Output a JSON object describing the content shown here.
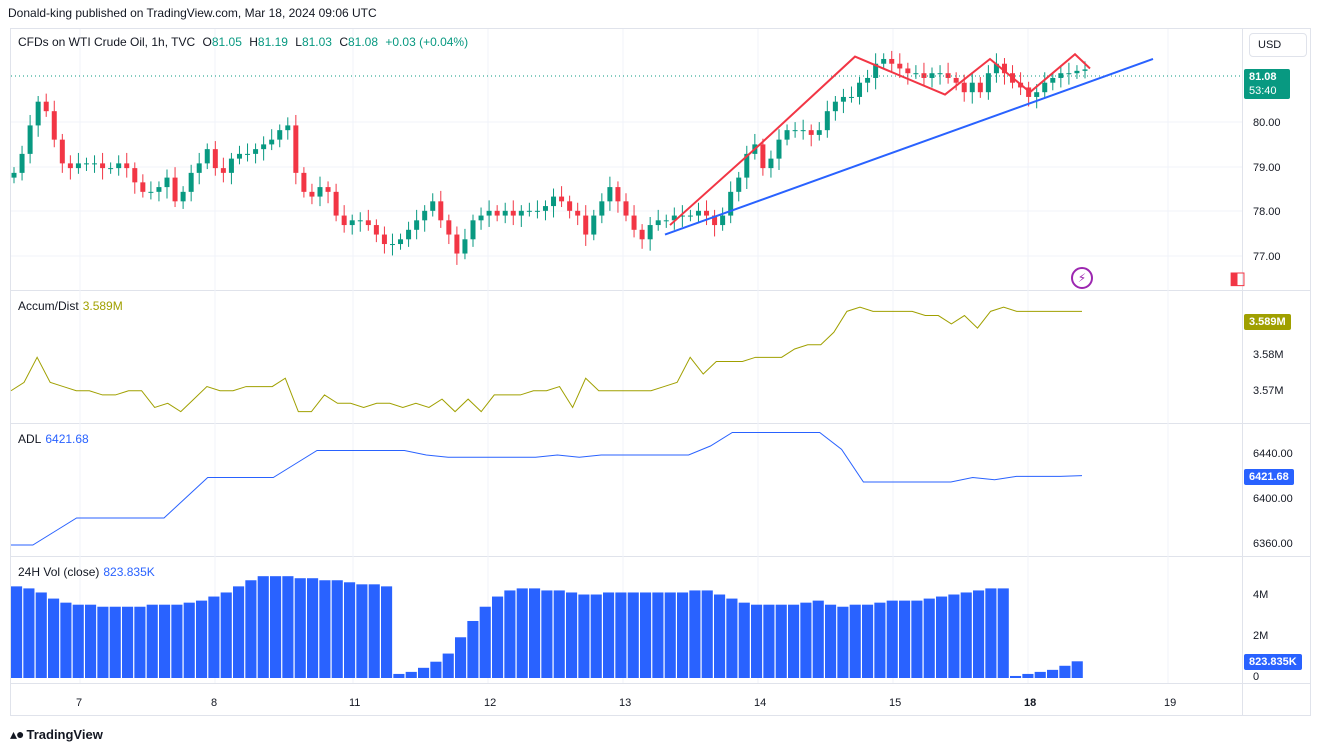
{
  "header": {
    "published_by": "Donald-king published on TradingView.com, Mar 18, 2024 09:06 UTC"
  },
  "symbol": {
    "name": "CFDs on WTI Crude Oil, 1h, TVC",
    "o_label": "O",
    "o": "81.05",
    "h_label": "H",
    "h": "81.19",
    "l_label": "L",
    "l": "81.03",
    "c_label": "C",
    "c": "81.08",
    "change": "+0.03 (+0.04%)"
  },
  "currency_button": "USD",
  "price_axis": {
    "ticks": [
      "80.00",
      "79.00",
      "78.00",
      "77.00"
    ],
    "last_price": "81.08",
    "countdown": "53:40"
  },
  "accum_dist": {
    "label": "Accum/Dist",
    "value": "3.589M",
    "ticks": [
      "3.58M",
      "3.57M"
    ],
    "tag": "3.589M"
  },
  "adl": {
    "label": "ADL",
    "value": "6421.68",
    "ticks": [
      "6440.00",
      "6400.00",
      "6360.00"
    ],
    "tag": "6421.68"
  },
  "volume": {
    "label": "24H Vol (close)",
    "value": "823.835K",
    "ticks": [
      "4M",
      "2M",
      "0"
    ],
    "tag": "823.835K"
  },
  "time_axis": {
    "labels": [
      "7",
      "8",
      "11",
      "12",
      "13",
      "14",
      "15",
      "18",
      "19"
    ],
    "bold_label": "18"
  },
  "footer": {
    "brand": "TradingView",
    "logo_icon": "tradingview-logo-icon"
  },
  "colors": {
    "up": "#089981",
    "down": "#f23645",
    "trend": "#2962ff",
    "pattern": "#f23645",
    "accum": "#a0a000",
    "adl": "#2962ff",
    "volume": "#2962ff",
    "last_price": "#089981"
  },
  "icons": [
    "lightning-icon",
    "calendar-icon"
  ],
  "chart_data": [
    {
      "type": "candlestick",
      "title": "CFDs on WTI Crude Oil, 1h, TVC",
      "x_labels": [
        "7",
        "8",
        "11",
        "12",
        "13",
        "14",
        "15",
        "18",
        "19"
      ],
      "ylim": [
        76.6,
        81.7
      ],
      "path_close": [
        78.9,
        79.3,
        79.9,
        80.4,
        80.2,
        79.6,
        79.1,
        79.0,
        79.1,
        79.1,
        79.1,
        79.0,
        79.0,
        79.1,
        79.0,
        78.7,
        78.5,
        78.5,
        78.6,
        78.8,
        78.3,
        78.5,
        78.9,
        79.1,
        79.4,
        79.0,
        78.9,
        79.2,
        79.3,
        79.3,
        79.4,
        79.5,
        79.6,
        79.8,
        79.9,
        78.9,
        78.5,
        78.4,
        78.6,
        78.5,
        78.0,
        77.8,
        77.9,
        77.9,
        77.8,
        77.6,
        77.4,
        77.4,
        77.5,
        77.7,
        77.9,
        78.1,
        78.3,
        77.9,
        77.6,
        77.2,
        77.5,
        77.9,
        78.0,
        78.1,
        78.0,
        78.1,
        78.0,
        78.1,
        78.1,
        78.1,
        78.2,
        78.4,
        78.3,
        78.1,
        78.0,
        77.6,
        78.0,
        78.3,
        78.6,
        78.3,
        78.0,
        77.7,
        77.5,
        77.8,
        77.9,
        77.9,
        78.0,
        78.0,
        78.0,
        78.1,
        78.0,
        77.8,
        78.0,
        78.5,
        78.8,
        79.3,
        79.5,
        79.0,
        79.2,
        79.6,
        79.8,
        79.8,
        79.8,
        79.7,
        79.8,
        80.2,
        80.4,
        80.5,
        80.5,
        80.8,
        80.9,
        81.2,
        81.3,
        81.2,
        81.1,
        81.0,
        81.0,
        80.9,
        81.0,
        81.0,
        80.9,
        80.8,
        80.6,
        80.8,
        80.6,
        81.0,
        81.2,
        81.0,
        80.8,
        80.7,
        80.5,
        80.6,
        80.8,
        80.9,
        81.0,
        81.0,
        81.05,
        81.08
      ],
      "trendline": [
        [
          "13",
          77.6
        ],
        [
          "19",
          81.3
        ]
      ],
      "pattern_line": [
        [
          77.8,
          79.0,
          80.6,
          81.4,
          80.5,
          81.3,
          80.6,
          81.4,
          81.1
        ]
      ]
    },
    {
      "type": "line",
      "title": "Accum/Dist",
      "last_value": "3.589M",
      "ticks": [
        "3.58M",
        "3.57M"
      ],
      "values": [
        3.57,
        3.572,
        3.578,
        3.572,
        3.571,
        3.57,
        3.57,
        3.569,
        3.569,
        3.57,
        3.57,
        3.566,
        3.567,
        3.565,
        3.568,
        3.571,
        3.57,
        3.57,
        3.571,
        3.571,
        3.571,
        3.573,
        3.565,
        3.565,
        3.569,
        3.567,
        3.567,
        3.566,
        3.567,
        3.567,
        3.566,
        3.567,
        3.566,
        3.568,
        3.565,
        3.568,
        3.565,
        3.569,
        3.569,
        3.569,
        3.57,
        3.57,
        3.571,
        3.566,
        3.573,
        3.57,
        3.57,
        3.57,
        3.57,
        3.57,
        3.571,
        3.572,
        3.578,
        3.574,
        3.577,
        3.577,
        3.577,
        3.578,
        3.578,
        3.578,
        3.58,
        3.581,
        3.581,
        3.584,
        3.589,
        3.59,
        3.589,
        3.589,
        3.589,
        3.589,
        3.588,
        3.588,
        3.586,
        3.588,
        3.585,
        3.589,
        3.59,
        3.589,
        3.589,
        3.589,
        3.589,
        3.589,
        3.589
      ]
    },
    {
      "type": "line",
      "title": "ADL",
      "last_value": "6421.68",
      "ticks": [
        "6440.00",
        "6400.00",
        "6360.00"
      ],
      "values": [
        6360,
        6360,
        6372,
        6384,
        6384,
        6384,
        6384,
        6384,
        6402,
        6420,
        6420,
        6420,
        6420,
        6432,
        6444,
        6444,
        6444,
        6444,
        6444,
        6440,
        6438,
        6438,
        6438,
        6438,
        6438,
        6440,
        6438,
        6440,
        6440,
        6440,
        6440,
        6440,
        6448,
        6460,
        6460,
        6460,
        6460,
        6460,
        6445,
        6416,
        6416,
        6416,
        6416,
        6416,
        6420,
        6418,
        6421,
        6421,
        6421,
        6421.68
      ]
    },
    {
      "type": "bar",
      "title": "24H Vol (close)",
      "last_value": "823.835K",
      "ticks": [
        "4M",
        "2M",
        "0"
      ],
      "units": "M",
      "ylim": [
        0,
        5.5
      ],
      "values": [
        4.5,
        4.4,
        4.2,
        3.9,
        3.7,
        3.6,
        3.6,
        3.5,
        3.5,
        3.5,
        3.5,
        3.6,
        3.6,
        3.6,
        3.7,
        3.8,
        4.0,
        4.2,
        4.5,
        4.8,
        5.0,
        5.0,
        5.0,
        4.9,
        4.9,
        4.8,
        4.8,
        4.7,
        4.6,
        4.6,
        4.5,
        0.2,
        0.3,
        0.5,
        0.8,
        1.2,
        2.0,
        2.8,
        3.5,
        4.0,
        4.3,
        4.4,
        4.4,
        4.3,
        4.3,
        4.2,
        4.1,
        4.1,
        4.2,
        4.2,
        4.2,
        4.2,
        4.2,
        4.2,
        4.2,
        4.3,
        4.3,
        4.1,
        3.9,
        3.7,
        3.6,
        3.6,
        3.6,
        3.6,
        3.7,
        3.8,
        3.6,
        3.5,
        3.6,
        3.6,
        3.7,
        3.8,
        3.8,
        3.8,
        3.9,
        4.0,
        4.1,
        4.2,
        4.3,
        4.4,
        4.4,
        0.1,
        0.2,
        0.3,
        0.4,
        0.6,
        0.82
      ]
    }
  ]
}
